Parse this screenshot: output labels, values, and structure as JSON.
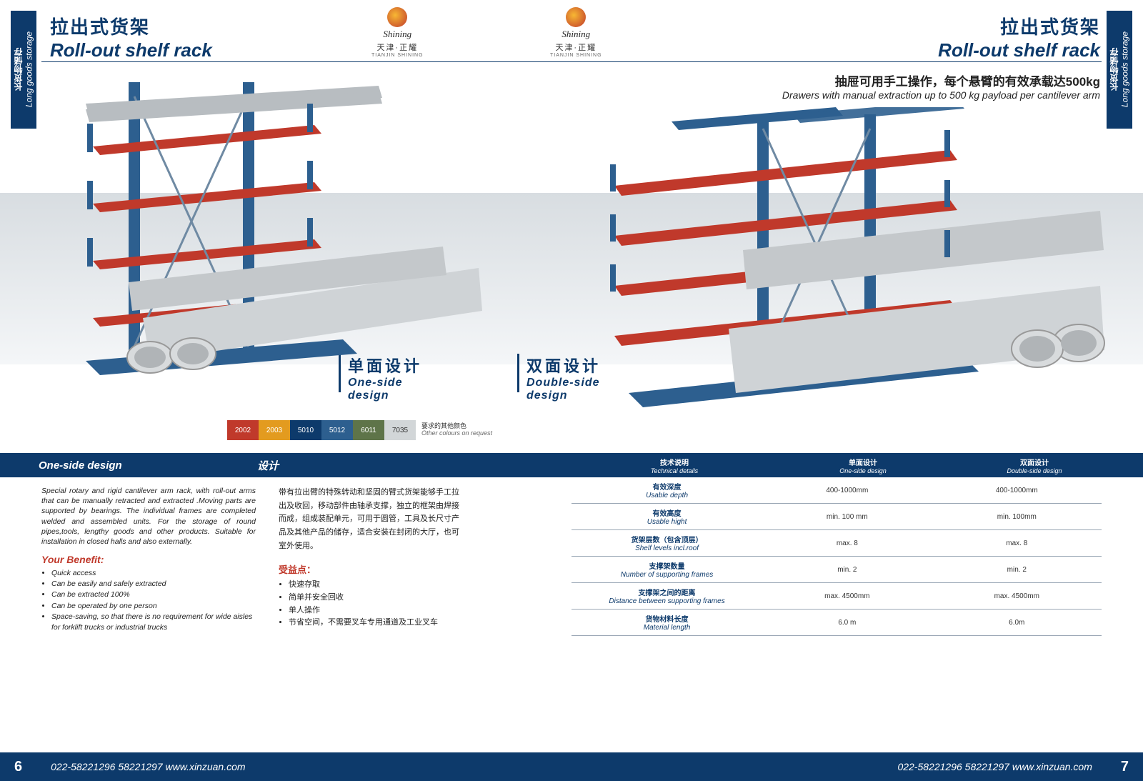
{
  "sideTab": {
    "cn": "长货物储存",
    "en": "Long goods storage"
  },
  "title": {
    "cn": "拉出式货架",
    "en": "Roll-out shelf rack"
  },
  "brand": {
    "script": "Shining",
    "cn": "天津·正耀",
    "en": "TIANJIN SHINING"
  },
  "subtitleRight": {
    "cn": "抽屉可用手工操作，每个悬臂的有效承载达500kg",
    "en": "Drawers with manual extraction up to 500 kg payload per cantilever arm"
  },
  "designLabels": {
    "one": {
      "cn": "单面设计",
      "en": "One-side design"
    },
    "two": {
      "cn": "双面设计",
      "en": "Double-side design"
    }
  },
  "swatches": [
    {
      "code": "2002",
      "color": "#c0392b",
      "light": false
    },
    {
      "code": "2003",
      "color": "#e39b1f",
      "light": false
    },
    {
      "code": "5010",
      "color": "#0d3a6b",
      "light": false
    },
    {
      "code": "5012",
      "color": "#2d5f8f",
      "light": false
    },
    {
      "code": "6011",
      "color": "#5e7449",
      "light": false
    },
    {
      "code": "7035",
      "color": "#d2d6d8",
      "light": true
    }
  ],
  "swatchNote": {
    "cn": "要求的其他颜色",
    "en": "Other colours on request"
  },
  "lowerLeft": {
    "head": "One-side design",
    "desc": "Special rotary and rigid cantilever arm rack, with roll-out arms that can be manually retracted and extracted .Moving parts are supported by bearings. The individual frames are completed welded and assembled units. For the storage of round pipes,tools, lengthy goods and other products. Suitable for installation in closed halls and also externally.",
    "benefitHead": "Your Benefit:",
    "benefits": [
      "Quick access",
      "Can be easily and safely extracted",
      "Can be extracted 100%",
      "Can be operated by one person",
      "Space-saving, so that there is no requirement for wide aisles for  forklift  trucks or industrial trucks"
    ]
  },
  "lowerMid": {
    "head": "设计",
    "desc": "带有拉出臂的特殊转动和坚固的臂式货架能够手工拉出及收回，移动部件由轴承支撑，独立的框架由焊接而成，组成装配单元，可用于圆管，工具及长尺寸产品及其他产品的储存，适合安装在封闭的大厅，也可室外使用。",
    "benefitHead": "受益点：",
    "benefits": [
      "快速存取",
      "简单并安全回收",
      "单人操作",
      "节省空间，不需要叉车专用通道及工业叉车"
    ]
  },
  "tableHeaders": {
    "c1": {
      "cn": "技术说明",
      "en": "Technical details"
    },
    "c2": {
      "cn": "单面设计",
      "en": "One-side design"
    },
    "c3": {
      "cn": "双面设计",
      "en": "Double-side design"
    }
  },
  "specRows": [
    {
      "cn": "有效深度",
      "en": "Usable depth",
      "v1": "400-1000mm",
      "v2": "400-1000mm"
    },
    {
      "cn": "有效高度",
      "en": "Usable hight",
      "v1": "min. 100 mm",
      "v2": "min. 100mm"
    },
    {
      "cn": "货架层数（包含顶层）",
      "en": "Shelf levels incl.roof",
      "v1": "max. 8",
      "v2": "max. 8"
    },
    {
      "cn": "支撑架数量",
      "en": "Number of supporting frames",
      "v1": "min. 2",
      "v2": "min. 2"
    },
    {
      "cn": "支撑架之间的距离",
      "en": "Distance between supporting frames",
      "v1": "max. 4500mm",
      "v2": "max. 4500mm"
    },
    {
      "cn": "货物材料长度",
      "en": "Material length",
      "v1": "6.0 m",
      "v2": "6.0m"
    }
  ],
  "footer": {
    "leftNum": "6",
    "rightNum": "7",
    "contact": "022-58221296   58221297   www.xinzuan.com"
  }
}
